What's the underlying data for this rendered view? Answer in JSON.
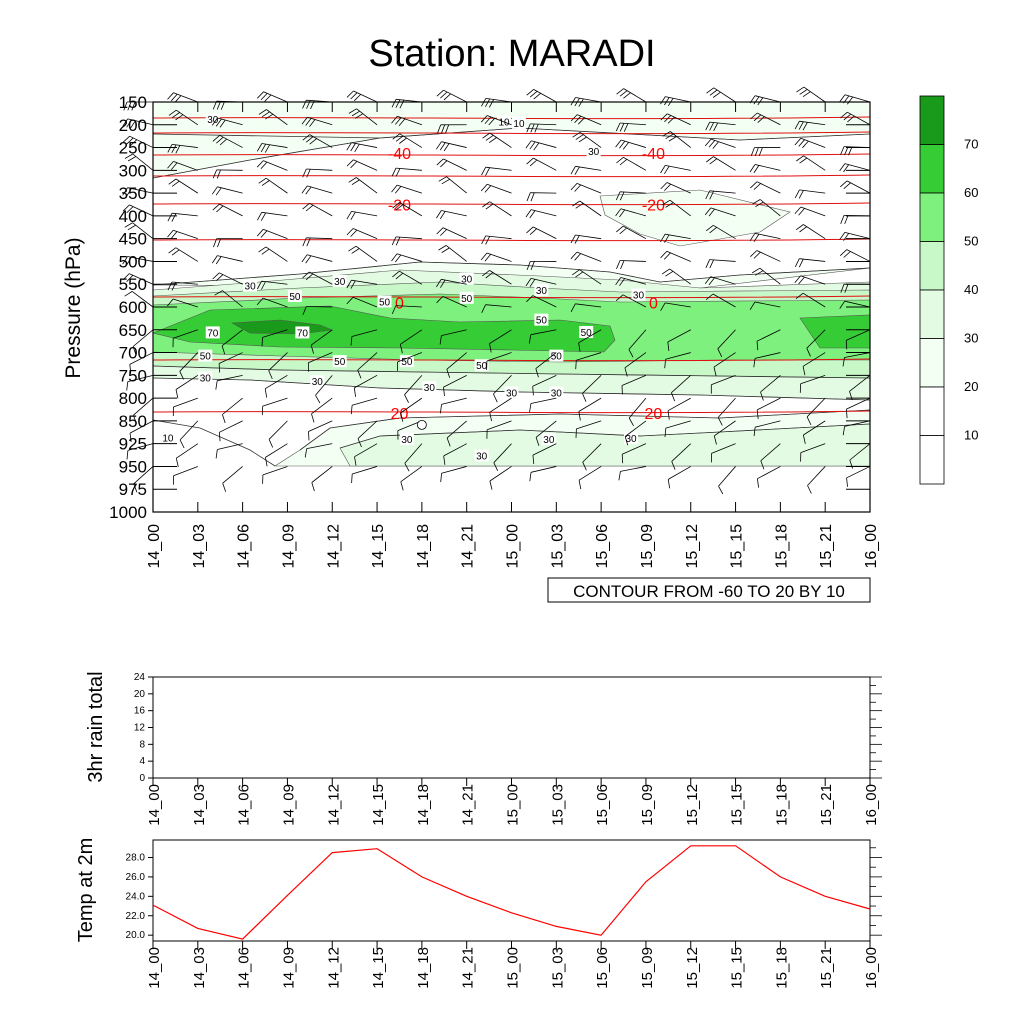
{
  "title": "Station: MARADI",
  "colors": {
    "contour_label": "#ff0000",
    "temp_line": "#ff0000",
    "fill_bins": [
      "#ffffff",
      "#f4fff4",
      "#e3fbe3",
      "#c8f7c8",
      "#7ef07e",
      "#35cc35",
      "#1a9a1a"
    ]
  },
  "chart_data": [
    {
      "type": "heatmap",
      "name": "pressure-time cross-section (relative humidity shading, temperature contours, wind barbs)",
      "title": "Station: MARADI",
      "ylabel": "Pressure (hPa)",
      "xlabel": "",
      "x_ticks": [
        "14_00",
        "14_03",
        "14_06",
        "14_09",
        "14_12",
        "14_15",
        "14_18",
        "14_21",
        "15_00",
        "15_03",
        "15_06",
        "15_09",
        "15_12",
        "15_15",
        "15_18",
        "15_21",
        "16_00"
      ],
      "pressure_levels": [
        150,
        200,
        250,
        300,
        350,
        400,
        450,
        500,
        550,
        600,
        650,
        700,
        750,
        800,
        850,
        925,
        950,
        975,
        1000
      ],
      "shading_levels": [
        10,
        20,
        30,
        40,
        50,
        60,
        70
      ],
      "temperature_contours": [
        {
          "value": -40,
          "pressure": 262
        },
        {
          "value": -20,
          "pressure": 375
        },
        {
          "value": 0,
          "pressure": 590
        },
        {
          "value": 20,
          "pressure": 833
        }
      ],
      "contour_info": "CONTOUR FROM -60 TO 20 BY 10",
      "rh_labels": [
        {
          "text": "30",
          "time": 4.0,
          "p": 190
        },
        {
          "text": "10",
          "time": 23.5,
          "p": 195
        },
        {
          "text": "10",
          "time": 24.5,
          "p": 198
        },
        {
          "text": "30",
          "time": 29.5,
          "p": 260
        },
        {
          "text": "30",
          "time": 12.5,
          "p": 545
        },
        {
          "text": "30",
          "time": 6.5,
          "p": 555
        },
        {
          "text": "30",
          "time": 21.0,
          "p": 540
        },
        {
          "text": "30",
          "time": 26.0,
          "p": 565
        },
        {
          "text": "30",
          "time": 32.5,
          "p": 575
        },
        {
          "text": "50",
          "time": 9.5,
          "p": 578
        },
        {
          "text": "50",
          "time": 15.5,
          "p": 590
        },
        {
          "text": "50",
          "time": 21.0,
          "p": 582
        },
        {
          "text": "50",
          "time": 26.0,
          "p": 630
        },
        {
          "text": "50",
          "time": 29.0,
          "p": 657
        },
        {
          "text": "70",
          "time": 4.0,
          "p": 658
        },
        {
          "text": "70",
          "time": 10.0,
          "p": 658
        },
        {
          "text": "50",
          "time": 3.5,
          "p": 709
        },
        {
          "text": "50",
          "time": 12.5,
          "p": 721
        },
        {
          "text": "50",
          "time": 17.0,
          "p": 721
        },
        {
          "text": "50",
          "time": 22.0,
          "p": 730
        },
        {
          "text": "50",
          "time": 27.0,
          "p": 709
        },
        {
          "text": "30",
          "time": 3.5,
          "p": 757
        },
        {
          "text": "30",
          "time": 11.0,
          "p": 765
        },
        {
          "text": "30",
          "time": 18.5,
          "p": 778
        },
        {
          "text": "30",
          "time": 24.0,
          "p": 790
        },
        {
          "text": "30",
          "time": 27.0,
          "p": 790
        },
        {
          "text": "30",
          "time": 32.0,
          "p": 910
        },
        {
          "text": "30",
          "time": 17.0,
          "p": 913
        },
        {
          "text": "30",
          "time": 26.5,
          "p": 913
        },
        {
          "text": "30",
          "time": 22.0,
          "p": 939
        },
        {
          "text": "10",
          "time": 1.0,
          "p": 908
        }
      ]
    },
    {
      "type": "line",
      "name": "3hr rain total",
      "ylabel": "3hr rain total",
      "x_ticks": [
        "14_00",
        "14_03",
        "14_06",
        "14_09",
        "14_12",
        "14_15",
        "14_18",
        "14_21",
        "15_00",
        "15_03",
        "15_06",
        "15_09",
        "15_12",
        "15_15",
        "15_18",
        "15_21",
        "16_00"
      ],
      "y_ticks": [
        "0",
        "4",
        "8",
        "12",
        "16",
        "20",
        "24"
      ],
      "ylim": [
        0,
        24
      ],
      "values": []
    },
    {
      "type": "line",
      "name": "Temp at 2m",
      "ylabel": "Temp at 2m",
      "x_ticks": [
        "14_00",
        "14_03",
        "14_06",
        "14_09",
        "14_12",
        "14_15",
        "14_18",
        "14_21",
        "15_00",
        "15_03",
        "15_06",
        "15_09",
        "15_12",
        "15_15",
        "15_18",
        "15_21",
        "16_00"
      ],
      "y_ticks": [
        "20.0",
        "22.0",
        "24.0",
        "26.0",
        "28.0"
      ],
      "ylim": [
        19.4,
        29.8
      ],
      "x_hours": [
        0,
        3,
        6,
        9,
        12,
        15,
        18,
        21,
        24,
        27,
        30,
        33,
        36,
        39,
        42,
        45,
        48
      ],
      "values": [
        23.1,
        20.7,
        19.6,
        24.1,
        28.5,
        28.9,
        26.0,
        24.0,
        22.3,
        20.9,
        20.0,
        25.5,
        29.2,
        29.2,
        26.0,
        24.0,
        22.7
      ]
    }
  ]
}
